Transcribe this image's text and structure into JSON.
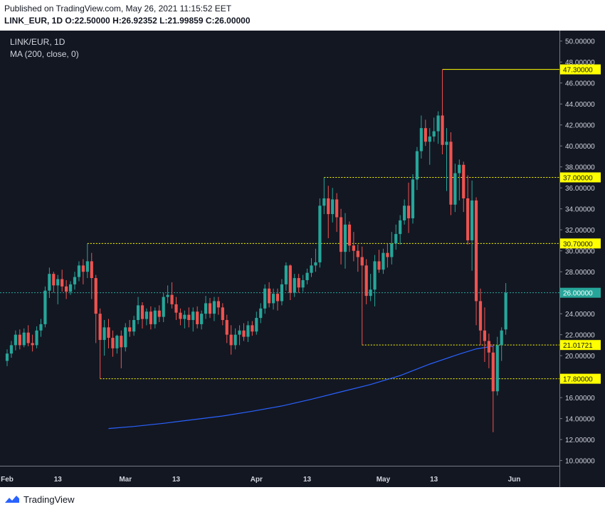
{
  "header": {
    "published": "Published on TradingView.com, May 26, 2021 11:15:52 EET",
    "ohlc": "LINK_EUR, 1D  O:22.50000  H:26.92352  L:21.99859  C:26.00000"
  },
  "footer": {
    "brand": "TradingView"
  },
  "colors": {
    "background": "#131722",
    "up": "#26a69a",
    "down": "#ef5350",
    "ma": "#2962ff",
    "level": "#ffff00",
    "current": "#26a69a"
  },
  "chart_data": {
    "type": "candlestick",
    "symbol_label": "LINK/EUR, 1D",
    "indicator_label": "MA (200, close, 0)",
    "ylim": [
      9.5,
      51.0
    ],
    "y_ticks": [
      10,
      12,
      14,
      16,
      18,
      20,
      22,
      24,
      26,
      28,
      30,
      32,
      34,
      36,
      38,
      40,
      42,
      44,
      46,
      48,
      50
    ],
    "y_tick_labels": [
      "10.00000",
      "12.00000",
      "14.00000",
      "16.00000",
      "18.00000",
      "20.00000",
      "22.00000",
      "24.00000",
      "26.00000",
      "28.00000",
      "30.00000",
      "32.00000",
      "34.00000",
      "36.00000",
      "38.00000",
      "40.00000",
      "42.00000",
      "44.00000",
      "46.00000",
      "48.00000",
      "50.00000"
    ],
    "x_ticks": [
      {
        "date": "2021-02-01",
        "label": "Feb"
      },
      {
        "date": "2021-02-13",
        "label": "13"
      },
      {
        "date": "2021-03-01",
        "label": "Mar"
      },
      {
        "date": "2021-03-13",
        "label": "13"
      },
      {
        "date": "2021-04-01",
        "label": "Apr"
      },
      {
        "date": "2021-04-13",
        "label": "13"
      },
      {
        "date": "2021-05-01",
        "label": "May"
      },
      {
        "date": "2021-05-13",
        "label": "13"
      },
      {
        "date": "2021-06-01",
        "label": "Jun"
      }
    ],
    "xlim": [
      "2021-02-01",
      "2021-06-09"
    ],
    "candles": [
      {
        "date": "2021-02-01",
        "open": 19.5,
        "high": 20.6,
        "low": 19.0,
        "close": 20.2
      },
      {
        "date": "2021-02-02",
        "open": 20.2,
        "high": 21.4,
        "low": 19.8,
        "close": 21.0
      },
      {
        "date": "2021-02-03",
        "open": 21.0,
        "high": 22.4,
        "low": 20.5,
        "close": 22.0
      },
      {
        "date": "2021-02-04",
        "open": 22.0,
        "high": 22.5,
        "low": 20.6,
        "close": 21.0
      },
      {
        "date": "2021-02-05",
        "open": 21.0,
        "high": 22.6,
        "low": 20.8,
        "close": 22.2
      },
      {
        "date": "2021-02-06",
        "open": 22.2,
        "high": 22.9,
        "low": 20.9,
        "close": 21.2
      },
      {
        "date": "2021-02-07",
        "open": 21.2,
        "high": 22.0,
        "low": 20.4,
        "close": 21.0
      },
      {
        "date": "2021-02-08",
        "open": 21.0,
        "high": 22.8,
        "low": 20.7,
        "close": 22.4
      },
      {
        "date": "2021-02-09",
        "open": 22.4,
        "high": 23.5,
        "low": 21.8,
        "close": 23.0
      },
      {
        "date": "2021-02-10",
        "open": 23.0,
        "high": 26.6,
        "low": 22.7,
        "close": 26.2
      },
      {
        "date": "2021-02-11",
        "open": 26.2,
        "high": 28.4,
        "low": 25.5,
        "close": 27.8
      },
      {
        "date": "2021-02-12",
        "open": 27.8,
        "high": 28.0,
        "low": 26.0,
        "close": 26.7
      },
      {
        "date": "2021-02-13",
        "open": 26.7,
        "high": 27.7,
        "low": 24.9,
        "close": 27.3
      },
      {
        "date": "2021-02-14",
        "open": 27.3,
        "high": 28.2,
        "low": 26.1,
        "close": 26.6
      },
      {
        "date": "2021-02-15",
        "open": 26.6,
        "high": 27.2,
        "low": 25.4,
        "close": 26.1
      },
      {
        "date": "2021-02-16",
        "open": 26.1,
        "high": 27.1,
        "low": 25.8,
        "close": 26.8
      },
      {
        "date": "2021-02-17",
        "open": 26.8,
        "high": 28.0,
        "low": 26.3,
        "close": 27.5
      },
      {
        "date": "2021-02-18",
        "open": 27.5,
        "high": 29.0,
        "low": 27.1,
        "close": 28.6
      },
      {
        "date": "2021-02-19",
        "open": 28.6,
        "high": 29.2,
        "low": 26.8,
        "close": 28.0
      },
      {
        "date": "2021-02-20",
        "open": 28.0,
        "high": 30.7,
        "low": 27.4,
        "close": 29.0
      },
      {
        "date": "2021-02-21",
        "open": 29.0,
        "high": 29.8,
        "low": 25.4,
        "close": 27.4
      },
      {
        "date": "2021-02-22",
        "open": 27.4,
        "high": 27.7,
        "low": 21.2,
        "close": 24.0
      },
      {
        "date": "2021-02-23",
        "open": 24.0,
        "high": 24.5,
        "low": 17.8,
        "close": 21.5
      },
      {
        "date": "2021-02-24",
        "open": 21.5,
        "high": 23.4,
        "low": 20.0,
        "close": 22.7
      },
      {
        "date": "2021-02-25",
        "open": 22.7,
        "high": 23.5,
        "low": 20.7,
        "close": 21.7
      },
      {
        "date": "2021-02-26",
        "open": 21.7,
        "high": 22.4,
        "low": 19.9,
        "close": 20.7
      },
      {
        "date": "2021-02-27",
        "open": 20.7,
        "high": 22.0,
        "low": 20.2,
        "close": 21.9
      },
      {
        "date": "2021-02-28",
        "open": 21.9,
        "high": 22.4,
        "low": 18.8,
        "close": 20.8
      },
      {
        "date": "2021-03-01",
        "open": 20.8,
        "high": 23.1,
        "low": 20.4,
        "close": 22.7
      },
      {
        "date": "2021-03-02",
        "open": 22.7,
        "high": 23.4,
        "low": 21.8,
        "close": 22.3
      },
      {
        "date": "2021-03-03",
        "open": 22.3,
        "high": 23.8,
        "low": 21.9,
        "close": 23.4
      },
      {
        "date": "2021-03-04",
        "open": 23.4,
        "high": 25.6,
        "low": 23.0,
        "close": 24.8
      },
      {
        "date": "2021-03-05",
        "open": 24.8,
        "high": 25.1,
        "low": 22.6,
        "close": 23.5
      },
      {
        "date": "2021-03-06",
        "open": 23.5,
        "high": 24.5,
        "low": 22.9,
        "close": 24.2
      },
      {
        "date": "2021-03-07",
        "open": 24.2,
        "high": 24.7,
        "low": 22.5,
        "close": 23.0
      },
      {
        "date": "2021-03-08",
        "open": 23.0,
        "high": 24.6,
        "low": 22.6,
        "close": 24.3
      },
      {
        "date": "2021-03-09",
        "open": 24.3,
        "high": 24.8,
        "low": 23.2,
        "close": 23.7
      },
      {
        "date": "2021-03-10",
        "open": 23.7,
        "high": 26.0,
        "low": 23.2,
        "close": 25.6
      },
      {
        "date": "2021-03-11",
        "open": 25.6,
        "high": 26.7,
        "low": 25.0,
        "close": 25.8
      },
      {
        "date": "2021-03-12",
        "open": 25.8,
        "high": 27.0,
        "low": 24.5,
        "close": 24.9
      },
      {
        "date": "2021-03-13",
        "open": 24.9,
        "high": 25.6,
        "low": 23.4,
        "close": 24.1
      },
      {
        "date": "2021-03-14",
        "open": 24.1,
        "high": 24.5,
        "low": 22.9,
        "close": 23.5
      },
      {
        "date": "2021-03-15",
        "open": 23.5,
        "high": 24.3,
        "low": 22.6,
        "close": 23.9
      },
      {
        "date": "2021-03-16",
        "open": 23.9,
        "high": 24.6,
        "low": 22.7,
        "close": 23.4
      },
      {
        "date": "2021-03-17",
        "open": 23.4,
        "high": 24.6,
        "low": 22.3,
        "close": 24.2
      },
      {
        "date": "2021-03-18",
        "open": 24.2,
        "high": 24.7,
        "low": 22.6,
        "close": 23.0
      },
      {
        "date": "2021-03-19",
        "open": 23.0,
        "high": 24.3,
        "low": 22.5,
        "close": 24.0
      },
      {
        "date": "2021-03-20",
        "open": 24.0,
        "high": 25.7,
        "low": 23.5,
        "close": 25.0
      },
      {
        "date": "2021-03-21",
        "open": 25.0,
        "high": 25.5,
        "low": 23.6,
        "close": 24.0
      },
      {
        "date": "2021-03-22",
        "open": 24.0,
        "high": 25.6,
        "low": 23.3,
        "close": 25.2
      },
      {
        "date": "2021-03-23",
        "open": 25.2,
        "high": 25.6,
        "low": 23.9,
        "close": 24.6
      },
      {
        "date": "2021-03-24",
        "open": 24.6,
        "high": 25.0,
        "low": 22.9,
        "close": 23.4
      },
      {
        "date": "2021-03-25",
        "open": 23.4,
        "high": 23.9,
        "low": 21.2,
        "close": 22.0
      },
      {
        "date": "2021-03-26",
        "open": 22.0,
        "high": 22.9,
        "low": 20.1,
        "close": 21.0
      },
      {
        "date": "2021-03-27",
        "open": 21.0,
        "high": 22.6,
        "low": 20.6,
        "close": 22.0
      },
      {
        "date": "2021-03-28",
        "open": 22.0,
        "high": 22.9,
        "low": 21.0,
        "close": 22.4
      },
      {
        "date": "2021-03-29",
        "open": 22.4,
        "high": 23.1,
        "low": 21.4,
        "close": 21.8
      },
      {
        "date": "2021-03-30",
        "open": 21.8,
        "high": 23.3,
        "low": 21.3,
        "close": 22.9
      },
      {
        "date": "2021-03-31",
        "open": 22.9,
        "high": 23.3,
        "low": 21.9,
        "close": 22.3
      },
      {
        "date": "2021-04-01",
        "open": 22.3,
        "high": 24.2,
        "low": 22.0,
        "close": 23.6
      },
      {
        "date": "2021-04-02",
        "open": 23.6,
        "high": 25.0,
        "low": 23.1,
        "close": 24.5
      },
      {
        "date": "2021-04-03",
        "open": 24.5,
        "high": 26.8,
        "low": 24.0,
        "close": 26.4
      },
      {
        "date": "2021-04-04",
        "open": 26.4,
        "high": 27.0,
        "low": 24.6,
        "close": 25.0
      },
      {
        "date": "2021-04-05",
        "open": 25.0,
        "high": 26.4,
        "low": 24.4,
        "close": 25.9
      },
      {
        "date": "2021-04-06",
        "open": 25.9,
        "high": 26.4,
        "low": 24.3,
        "close": 25.2
      },
      {
        "date": "2021-04-07",
        "open": 25.2,
        "high": 27.3,
        "low": 24.8,
        "close": 26.8
      },
      {
        "date": "2021-04-08",
        "open": 26.8,
        "high": 28.9,
        "low": 26.2,
        "close": 28.6
      },
      {
        "date": "2021-04-09",
        "open": 28.6,
        "high": 28.7,
        "low": 25.3,
        "close": 26.0
      },
      {
        "date": "2021-04-10",
        "open": 26.0,
        "high": 27.8,
        "low": 25.6,
        "close": 27.4
      },
      {
        "date": "2021-04-11",
        "open": 27.4,
        "high": 27.8,
        "low": 26.0,
        "close": 26.5
      },
      {
        "date": "2021-04-12",
        "open": 26.5,
        "high": 27.7,
        "low": 26.1,
        "close": 27.2
      },
      {
        "date": "2021-04-13",
        "open": 27.2,
        "high": 28.3,
        "low": 26.8,
        "close": 27.9
      },
      {
        "date": "2021-04-14",
        "open": 27.9,
        "high": 29.3,
        "low": 27.5,
        "close": 28.6
      },
      {
        "date": "2021-04-15",
        "open": 28.6,
        "high": 30.2,
        "low": 28.0,
        "close": 28.9
      },
      {
        "date": "2021-04-16",
        "open": 28.9,
        "high": 35.0,
        "low": 28.4,
        "close": 34.3
      },
      {
        "date": "2021-04-17",
        "open": 34.3,
        "high": 37.0,
        "low": 33.5,
        "close": 35.0
      },
      {
        "date": "2021-04-18",
        "open": 35.0,
        "high": 36.2,
        "low": 31.2,
        "close": 33.5
      },
      {
        "date": "2021-04-19",
        "open": 33.5,
        "high": 36.0,
        "low": 32.7,
        "close": 34.9
      },
      {
        "date": "2021-04-20",
        "open": 34.9,
        "high": 35.5,
        "low": 31.8,
        "close": 33.2
      },
      {
        "date": "2021-04-21",
        "open": 33.2,
        "high": 34.0,
        "low": 28.7,
        "close": 29.9
      },
      {
        "date": "2021-04-22",
        "open": 29.9,
        "high": 33.6,
        "low": 28.3,
        "close": 32.5
      },
      {
        "date": "2021-04-23",
        "open": 32.5,
        "high": 32.8,
        "low": 29.9,
        "close": 30.5
      },
      {
        "date": "2021-04-24",
        "open": 30.5,
        "high": 31.8,
        "low": 29.0,
        "close": 30.0
      },
      {
        "date": "2021-04-25",
        "open": 30.0,
        "high": 30.6,
        "low": 28.0,
        "close": 29.4
      },
      {
        "date": "2021-04-26",
        "open": 29.4,
        "high": 30.4,
        "low": 21.0,
        "close": 28.6
      },
      {
        "date": "2021-04-27",
        "open": 28.6,
        "high": 29.2,
        "low": 24.9,
        "close": 25.7
      },
      {
        "date": "2021-04-28",
        "open": 25.7,
        "high": 27.8,
        "low": 25.2,
        "close": 26.3
      },
      {
        "date": "2021-04-29",
        "open": 26.3,
        "high": 29.6,
        "low": 24.7,
        "close": 29.0
      },
      {
        "date": "2021-04-30",
        "open": 29.0,
        "high": 30.1,
        "low": 27.9,
        "close": 28.2
      },
      {
        "date": "2021-05-01",
        "open": 28.2,
        "high": 30.2,
        "low": 27.8,
        "close": 29.8
      },
      {
        "date": "2021-05-02",
        "open": 29.8,
        "high": 30.7,
        "low": 28.4,
        "close": 29.4
      },
      {
        "date": "2021-05-03",
        "open": 29.4,
        "high": 31.8,
        "low": 28.7,
        "close": 30.7
      },
      {
        "date": "2021-05-04",
        "open": 30.7,
        "high": 32.5,
        "low": 30.1,
        "close": 31.6
      },
      {
        "date": "2021-05-05",
        "open": 31.6,
        "high": 33.4,
        "low": 30.6,
        "close": 32.9
      },
      {
        "date": "2021-05-06",
        "open": 32.9,
        "high": 34.9,
        "low": 32.5,
        "close": 34.3
      },
      {
        "date": "2021-05-07",
        "open": 34.3,
        "high": 36.5,
        "low": 31.7,
        "close": 33.1
      },
      {
        "date": "2021-05-08",
        "open": 33.1,
        "high": 37.3,
        "low": 32.6,
        "close": 36.8
      },
      {
        "date": "2021-05-09",
        "open": 36.8,
        "high": 39.9,
        "low": 35.8,
        "close": 39.5
      },
      {
        "date": "2021-05-10",
        "open": 39.5,
        "high": 42.9,
        "low": 38.8,
        "close": 41.7
      },
      {
        "date": "2021-05-11",
        "open": 41.7,
        "high": 42.5,
        "low": 40.0,
        "close": 40.4
      },
      {
        "date": "2021-05-12",
        "open": 40.4,
        "high": 41.7,
        "low": 38.2,
        "close": 40.9
      },
      {
        "date": "2021-05-13",
        "open": 40.9,
        "high": 42.7,
        "low": 40.4,
        "close": 41.4
      },
      {
        "date": "2021-05-14",
        "open": 41.4,
        "high": 43.3,
        "low": 40.2,
        "close": 42.9
      },
      {
        "date": "2021-05-15",
        "open": 42.9,
        "high": 47.3,
        "low": 39.2,
        "close": 40.1
      },
      {
        "date": "2021-05-16",
        "open": 40.1,
        "high": 41.7,
        "low": 35.7,
        "close": 40.4
      },
      {
        "date": "2021-05-17",
        "open": 40.4,
        "high": 41.3,
        "low": 33.4,
        "close": 34.4
      },
      {
        "date": "2021-05-18",
        "open": 34.4,
        "high": 38.3,
        "low": 33.7,
        "close": 37.4
      },
      {
        "date": "2021-05-19",
        "open": 37.4,
        "high": 38.7,
        "low": 34.8,
        "close": 38.2
      },
      {
        "date": "2021-05-20",
        "open": 38.2,
        "high": 38.5,
        "low": 33.7,
        "close": 35.0
      },
      {
        "date": "2021-05-21",
        "open": 35.0,
        "high": 37.2,
        "low": 30.6,
        "close": 31.0
      },
      {
        "date": "2021-05-22",
        "open": 31.0,
        "high": 36.7,
        "low": 28.1,
        "close": 34.8
      },
      {
        "date": "2021-05-23",
        "open": 34.8,
        "high": 35.1,
        "low": 22.9,
        "close": 25.2
      },
      {
        "date": "2021-05-24",
        "open": 25.2,
        "high": 26.4,
        "low": 21.0,
        "close": 22.4
      },
      {
        "date": "2021-05-25",
        "open": 22.4,
        "high": 24.6,
        "low": 19.4,
        "close": 21.4
      },
      {
        "date": "2021-05-26",
        "open": 21.4,
        "high": 22.1,
        "low": 18.8,
        "close": 20.3
      },
      {
        "date": "2021-05-27",
        "open": 20.3,
        "high": 21.1,
        "low": 12.7,
        "close": 16.6
      },
      {
        "date": "2021-05-28",
        "open": 16.6,
        "high": 21.8,
        "low": 16.2,
        "close": 21.0
      },
      {
        "date": "2021-05-29",
        "open": 21.0,
        "high": 22.7,
        "low": 19.5,
        "close": 22.4
      },
      {
        "date": "2021-05-30",
        "open": 22.5,
        "high": 26.92352,
        "low": 21.99859,
        "close": 26.0
      }
    ],
    "ma_line": {
      "name": "MA (200, close, 0)",
      "points": [
        {
          "date": "2021-02-25",
          "value": 13.05
        },
        {
          "date": "2021-03-03",
          "value": 13.25
        },
        {
          "date": "2021-03-10",
          "value": 13.55
        },
        {
          "date": "2021-03-17",
          "value": 13.9
        },
        {
          "date": "2021-03-24",
          "value": 14.25
        },
        {
          "date": "2021-03-31",
          "value": 14.7
        },
        {
          "date": "2021-04-07",
          "value": 15.2
        },
        {
          "date": "2021-04-14",
          "value": 15.85
        },
        {
          "date": "2021-04-21",
          "value": 16.55
        },
        {
          "date": "2021-04-28",
          "value": 17.25
        },
        {
          "date": "2021-05-05",
          "value": 18.1
        },
        {
          "date": "2021-05-12",
          "value": 19.2
        },
        {
          "date": "2021-05-19",
          "value": 20.15
        },
        {
          "date": "2021-05-23",
          "value": 20.65
        },
        {
          "date": "2021-05-27",
          "value": 20.9
        }
      ]
    },
    "horizontal_levels": [
      {
        "value": 47.3,
        "label": "47.30000",
        "from_date": "2021-05-15"
      },
      {
        "value": 37.0,
        "label": "37.00000",
        "from_date": "2021-04-17"
      },
      {
        "value": 30.7,
        "label": "30.70000",
        "from_date": "2021-02-20"
      },
      {
        "value": 21.01721,
        "label": "21.01721",
        "from_date": "2021-04-26"
      },
      {
        "value": 17.8,
        "label": "17.80000",
        "from_date": "2021-02-23"
      }
    ],
    "current_price": {
      "value": 26.0,
      "label": "26.00000"
    }
  }
}
